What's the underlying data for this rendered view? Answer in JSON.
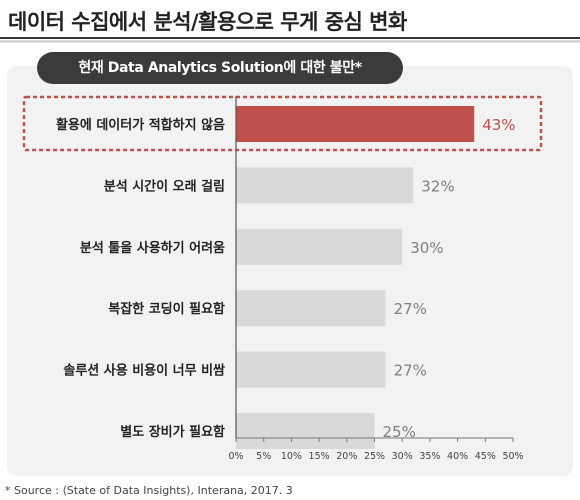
{
  "header": {
    "title": "데이터 수집에서 분석/활용으로 무게 중심 변화"
  },
  "chart_data": {
    "type": "bar",
    "orientation": "horizontal",
    "title": "현재 Data Analytics Solution에 대한 불만*",
    "categories": [
      "활용에 데이터가 적합하지 않음",
      "분석 시간이 오래 걸림",
      "분석 툴을 사용하기 어려움",
      "복잡한 코딩이 필요함",
      "솔루션 사용 비용이 너무 비쌈",
      "별도 장비가 필요함"
    ],
    "values": [
      43,
      32,
      30,
      27,
      27,
      25
    ],
    "value_labels": [
      "43%",
      "32%",
      "30%",
      "27%",
      "27%",
      "25%"
    ],
    "x_ticks": [
      "0%",
      "5%",
      "10%",
      "15%",
      "20%",
      "25%",
      "30%",
      "35%",
      "40%",
      "45%",
      "50%"
    ],
    "xlim": [
      0,
      50
    ],
    "highlight_index": 0,
    "colors": {
      "highlight": "#c0504d",
      "default": "#d9d9d9",
      "highlight_label": "#c0504d",
      "default_label": "#7f7f7f"
    }
  },
  "footer": {
    "source": "* Source : ⟨State of Data Insights⟩, Interana,  2017. 3"
  }
}
